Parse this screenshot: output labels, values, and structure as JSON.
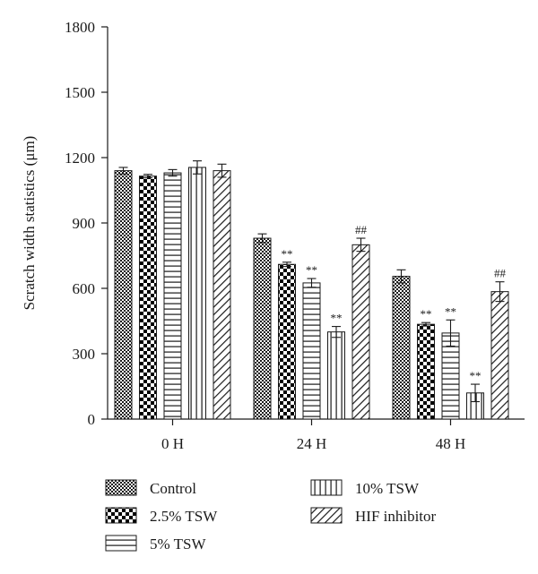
{
  "chart_data": {
    "type": "bar",
    "title": "",
    "xlabel": "",
    "ylabel": "Scratch width statistics (μm)",
    "ylim": [
      0,
      1800
    ],
    "yticks": [
      "0",
      "300",
      "600",
      "900",
      "1200",
      "1500",
      "1800"
    ],
    "categories": [
      "0 H",
      "24 H",
      "48 H"
    ],
    "series": [
      {
        "name": "Control",
        "pattern": "checker-small",
        "values": [
          1140,
          830,
          655
        ],
        "errors": [
          15,
          20,
          30
        ],
        "markers": [
          "",
          "",
          ""
        ]
      },
      {
        "name": "2.5% TSW",
        "pattern": "checker-large",
        "values": [
          1115,
          710,
          435
        ],
        "errors": [
          8,
          10,
          8
        ],
        "markers": [
          "",
          "**",
          "**"
        ]
      },
      {
        "name": "5% TSW",
        "pattern": "horizontal",
        "values": [
          1130,
          625,
          395
        ],
        "errors": [
          15,
          20,
          60
        ],
        "markers": [
          "",
          "**",
          "**"
        ]
      },
      {
        "name": "10% TSW",
        "pattern": "vertical",
        "values": [
          1155,
          400,
          120
        ],
        "errors": [
          30,
          25,
          40
        ],
        "markers": [
          "",
          "**",
          "**"
        ]
      },
      {
        "name": "HIF inhibitor",
        "pattern": "diagonal",
        "values": [
          1140,
          800,
          585
        ],
        "errors": [
          30,
          30,
          45
        ],
        "markers": [
          "",
          "##",
          "##"
        ]
      }
    ],
    "legend": {
      "placement": "bottom",
      "columns": 2
    }
  }
}
